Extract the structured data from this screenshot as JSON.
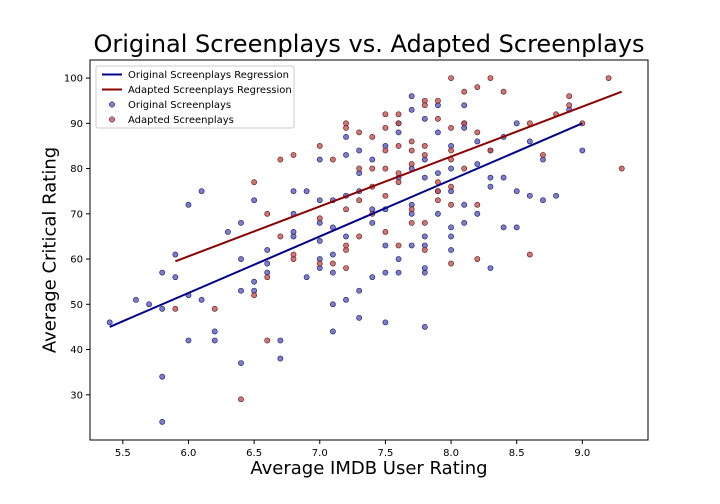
{
  "chart_data": {
    "type": "scatter",
    "title": "Original Screenplays vs. Adapted Screenplays",
    "xlabel": "Average IMDB User Rating",
    "ylabel": "Average Critical Rating",
    "xlim": [
      5.25,
      9.5
    ],
    "ylim": [
      20,
      104
    ],
    "xticks": [
      5.5,
      6.0,
      6.5,
      7.0,
      7.5,
      8.0,
      8.5,
      9.0
    ],
    "xtick_labels": [
      "5.5",
      "6.0",
      "6.5",
      "7.0",
      "7.5",
      "8.0",
      "8.5",
      "9.0"
    ],
    "yticks": [
      30,
      40,
      50,
      60,
      70,
      80,
      90,
      100
    ],
    "ytick_labels": [
      "30",
      "40",
      "50",
      "60",
      "70",
      "80",
      "90",
      "100"
    ],
    "grid": false,
    "legend_position": "top-left",
    "legend": [
      {
        "label": "Original Screenplays Regression",
        "kind": "line",
        "color": "#00008b"
      },
      {
        "label": "Adapted Screenplays Regression",
        "kind": "line",
        "color": "#8b0000"
      },
      {
        "label": "Original Screenplays",
        "kind": "marker",
        "color": "#5a5ac8"
      },
      {
        "label": "Adapted Screenplays",
        "kind": "marker",
        "color": "#c85050"
      }
    ],
    "series": [
      {
        "name": "Original Screenplays Regression",
        "kind": "line",
        "color": "#00008b",
        "x": [
          5.4,
          9.0
        ],
        "y": [
          45,
          90
        ]
      },
      {
        "name": "Adapted Screenplays Regression",
        "kind": "line",
        "color": "#8b0000",
        "x": [
          5.9,
          9.3
        ],
        "y": [
          59.5,
          97
        ]
      },
      {
        "name": "Original Screenplays",
        "kind": "scatter",
        "color": "#5a5ac8",
        "x": [
          5.4,
          5.6,
          5.7,
          5.8,
          5.8,
          5.8,
          5.8,
          5.9,
          5.9,
          6.0,
          6.0,
          6.0,
          6.1,
          6.1,
          6.2,
          6.2,
          6.3,
          6.4,
          6.4,
          6.4,
          6.4,
          6.5,
          6.5,
          6.5,
          6.6,
          6.6,
          6.6,
          6.7,
          6.7,
          6.8,
          6.8,
          6.8,
          6.8,
          6.9,
          6.9,
          7.0,
          7.0,
          7.0,
          7.0,
          7.0,
          7.0,
          7.1,
          7.1,
          7.1,
          7.1,
          7.1,
          7.1,
          7.2,
          7.2,
          7.2,
          7.2,
          7.2,
          7.3,
          7.3,
          7.3,
          7.3,
          7.3,
          7.4,
          7.4,
          7.4,
          7.4,
          7.5,
          7.5,
          7.5,
          7.5,
          7.5,
          7.6,
          7.6,
          7.6,
          7.6,
          7.6,
          7.7,
          7.7,
          7.7,
          7.7,
          7.7,
          7.7,
          7.8,
          7.8,
          7.8,
          7.8,
          7.8,
          7.8,
          7.8,
          7.8,
          7.9,
          7.9,
          7.9,
          7.9,
          7.9,
          8.0,
          8.0,
          8.0,
          8.0,
          8.0,
          8.0,
          8.1,
          8.1,
          8.1,
          8.1,
          8.1,
          8.2,
          8.2,
          8.2,
          8.3,
          8.3,
          8.3,
          8.3,
          8.4,
          8.4,
          8.4,
          8.5,
          8.5,
          8.5,
          8.6,
          8.6,
          8.7,
          8.7,
          8.8,
          8.9,
          9.0
        ],
        "y": [
          46,
          51,
          50,
          24,
          34,
          57,
          49,
          56,
          61,
          72,
          52,
          42,
          75,
          51,
          44,
          42,
          66,
          37,
          53,
          60,
          68,
          53,
          55,
          73,
          57,
          62,
          59,
          42,
          38,
          65,
          66,
          70,
          75,
          56,
          75,
          60,
          82,
          64,
          58,
          68,
          73,
          44,
          50,
          57,
          61,
          67,
          73,
          51,
          65,
          74,
          83,
          87,
          53,
          47,
          75,
          79,
          84,
          56,
          68,
          71,
          82,
          85,
          57,
          71,
          46,
          63,
          57,
          60,
          78,
          88,
          90,
          70,
          63,
          96,
          93,
          80,
          72,
          45,
          57,
          58,
          63,
          65,
          78,
          82,
          91,
          94,
          75,
          79,
          88,
          70,
          62,
          65,
          75,
          80,
          85,
          67,
          68,
          72,
          89,
          90,
          94,
          70,
          81,
          86,
          76,
          58,
          78,
          84,
          67,
          78,
          87,
          75,
          67,
          90,
          74,
          86,
          73,
          82,
          74,
          93,
          84
        ],
        "edgecolor": "#1a1a50"
      },
      {
        "name": "Adapted Screenplays",
        "kind": "scatter",
        "color": "#c85050",
        "x": [
          5.9,
          6.2,
          6.4,
          6.5,
          6.5,
          6.6,
          6.6,
          6.6,
          6.7,
          6.7,
          6.8,
          6.8,
          6.8,
          7.0,
          7.0,
          7.0,
          7.1,
          7.1,
          7.2,
          7.2,
          7.2,
          7.2,
          7.2,
          7.2,
          7.3,
          7.3,
          7.3,
          7.3,
          7.4,
          7.4,
          7.4,
          7.4,
          7.5,
          7.5,
          7.5,
          7.5,
          7.5,
          7.5,
          7.6,
          7.6,
          7.6,
          7.6,
          7.6,
          7.6,
          7.7,
          7.7,
          7.7,
          7.7,
          7.7,
          7.8,
          7.8,
          7.8,
          7.8,
          7.8,
          7.8,
          7.9,
          7.9,
          7.9,
          7.9,
          7.9,
          8.0,
          8.0,
          8.0,
          8.0,
          8.0,
          8.0,
          8.0,
          8.1,
          8.1,
          8.1,
          8.2,
          8.2,
          8.2,
          8.2,
          8.3,
          8.3,
          8.4,
          8.6,
          8.6,
          8.7,
          8.8,
          8.9,
          8.9,
          9.0,
          9.2,
          9.3
        ],
        "y": [
          49,
          49,
          29,
          52,
          77,
          70,
          56,
          42,
          82,
          65,
          83,
          60,
          61,
          85,
          59,
          69,
          82,
          59,
          90,
          71,
          58,
          62,
          63,
          89,
          73,
          88,
          80,
          65,
          76,
          80,
          70,
          87,
          92,
          66,
          84,
          74,
          80,
          89,
          92,
          79,
          85,
          63,
          77,
          90,
          71,
          81,
          68,
          84,
          86,
          95,
          94,
          85,
          83,
          68,
          62,
          75,
          95,
          73,
          91,
          77,
          100,
          89,
          82,
          84,
          76,
          72,
          59,
          97,
          90,
          80,
          98,
          88,
          72,
          60,
          100,
          84,
          97,
          61,
          90,
          83,
          92,
          96,
          94,
          90,
          100,
          80
        ],
        "edgecolor": "#501a1a"
      }
    ]
  }
}
